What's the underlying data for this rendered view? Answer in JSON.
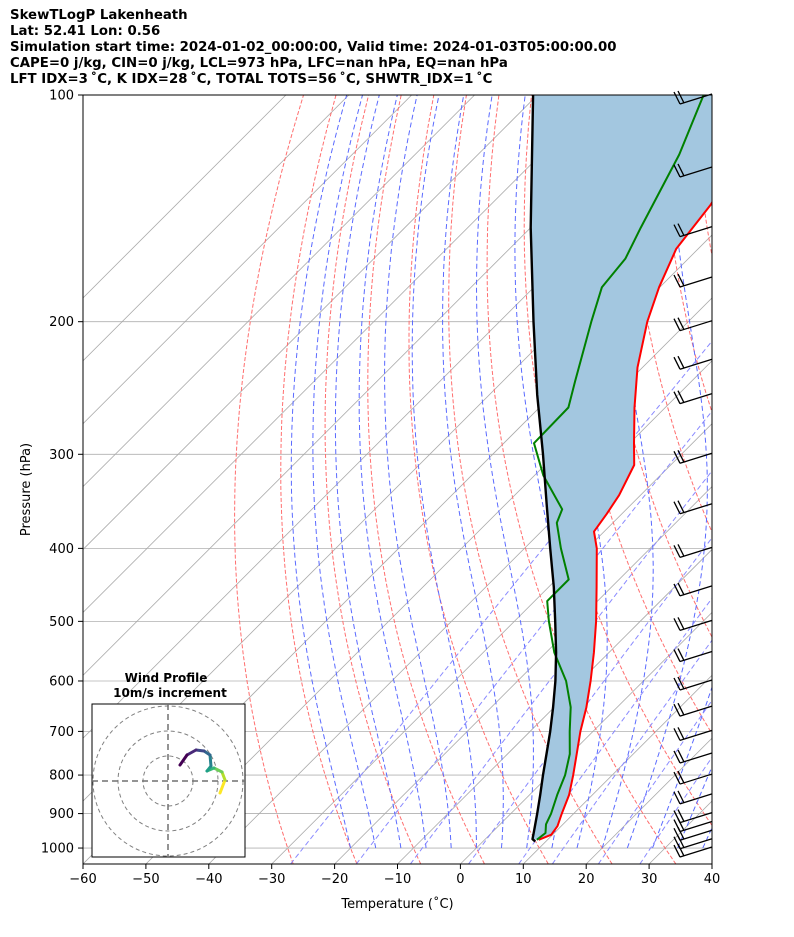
{
  "header": {
    "title": "SkewTLogP Lakenheath",
    "location": "Lat: 52.41   Lon: 0.56",
    "times": "Simulation start time: 2024-01-02_00:00:00, Valid time: 2024-01-03T05:00:00.00",
    "params": "CAPE=0 j/kg, CIN=0 j/kg, LCL=973 hPa, LFC=nan hPa, EQ=nan hPa",
    "indices": "LFT IDX=3 ˚C, K IDX=28 ˚C, TOTAL TOTS=56 ˚C, SHWTR_IDX=1 ˚C"
  },
  "colors": {
    "temperature": "#ff0000",
    "dewpoint": "#008000",
    "parcel": "#000000",
    "cape_fill": "#a3c7e0",
    "dry_adiabat": "#ff6f6f",
    "moist_adiabat": "#5a6aff",
    "mixing_ratio": "#8a8aff",
    "isotherm": "#aaaaaa"
  },
  "chart_data": {
    "type": "skewt",
    "title": "SkewTLogP Lakenheath",
    "xlabel": "Temperature (˚C)",
    "ylabel": "Pressure (hPa)",
    "xlim": [
      -60,
      40
    ],
    "ylim": [
      1050,
      100
    ],
    "y_scale": "log",
    "x_ticks": [
      -60,
      -50,
      -40,
      -30,
      -20,
      -10,
      0,
      10,
      20,
      30,
      40
    ],
    "x_tick_labels": [
      "−60",
      "−50",
      "−40",
      "−30",
      "−20",
      "−10",
      "0",
      "10",
      "20",
      "30",
      "40"
    ],
    "y_ticks": [
      1000,
      900,
      800,
      700,
      600,
      500,
      400,
      300,
      200,
      100
    ],
    "y_tick_labels": [
      "1000",
      "900",
      "800",
      "700",
      "600",
      "500",
      "400",
      "300",
      "200",
      "100"
    ],
    "grid": true,
    "temperature": [
      {
        "p": 975,
        "t": 8.6
      },
      {
        "p": 960,
        "t": 9.8
      },
      {
        "p": 935,
        "t": 9.4
      },
      {
        "p": 900,
        "t": 8.1
      },
      {
        "p": 850,
        "t": 6.3
      },
      {
        "p": 800,
        "t": 3.8
      },
      {
        "p": 750,
        "t": 1.0
      },
      {
        "p": 700,
        "t": -2.0
      },
      {
        "p": 650,
        "t": -4.9
      },
      {
        "p": 600,
        "t": -8.4
      },
      {
        "p": 550,
        "t": -12.4
      },
      {
        "p": 500,
        "t": -17.0
      },
      {
        "p": 450,
        "t": -22.4
      },
      {
        "p": 400,
        "t": -28.5
      },
      {
        "p": 380,
        "t": -31.6
      },
      {
        "p": 360,
        "t": -32.4
      },
      {
        "p": 340,
        "t": -33.4
      },
      {
        "p": 310,
        "t": -35.8
      },
      {
        "p": 290,
        "t": -39.3
      },
      {
        "p": 260,
        "t": -44.9
      },
      {
        "p": 230,
        "t": -50.8
      },
      {
        "p": 200,
        "t": -56.5
      },
      {
        "p": 180,
        "t": -60.1
      },
      {
        "p": 160,
        "t": -63.5
      },
      {
        "p": 140,
        "t": -65.0
      },
      {
        "p": 130,
        "t": -66.5
      },
      {
        "p": 118,
        "t": -70.7
      },
      {
        "p": 105,
        "t": -73.5
      },
      {
        "p": 100,
        "t": -75.0
      }
    ],
    "dewpoint": [
      {
        "p": 975,
        "t": 8.3
      },
      {
        "p": 955,
        "t": 8.6
      },
      {
        "p": 930,
        "t": 7.3
      },
      {
        "p": 900,
        "t": 6.4
      },
      {
        "p": 850,
        "t": 4.4
      },
      {
        "p": 800,
        "t": 2.5
      },
      {
        "p": 750,
        "t": -0.1
      },
      {
        "p": 700,
        "t": -3.7
      },
      {
        "p": 650,
        "t": -7.4
      },
      {
        "p": 600,
        "t": -12.3
      },
      {
        "p": 550,
        "t": -18.7
      },
      {
        "p": 500,
        "t": -24.5
      },
      {
        "p": 470,
        "t": -28.0
      },
      {
        "p": 440,
        "t": -28.0
      },
      {
        "p": 400,
        "t": -34.2
      },
      {
        "p": 370,
        "t": -38.9
      },
      {
        "p": 355,
        "t": -40.2
      },
      {
        "p": 320,
        "t": -48.6
      },
      {
        "p": 290,
        "t": -55.2
      },
      {
        "p": 260,
        "t": -55.4
      },
      {
        "p": 240,
        "t": -58.5
      },
      {
        "p": 200,
        "t": -65.4
      },
      {
        "p": 180,
        "t": -69.2
      },
      {
        "p": 165,
        "t": -70.0
      },
      {
        "p": 150,
        "t": -72.5
      },
      {
        "p": 120,
        "t": -78.0
      },
      {
        "p": 100,
        "t": -83.6
      }
    ],
    "parcel": [
      {
        "p": 980,
        "t": 8.3
      },
      {
        "p": 973,
        "t": 7.5
      },
      {
        "p": 950,
        "t": 6.5
      },
      {
        "p": 900,
        "t": 4.2
      },
      {
        "p": 850,
        "t": 1.7
      },
      {
        "p": 800,
        "t": -1.0
      },
      {
        "p": 750,
        "t": -3.8
      },
      {
        "p": 700,
        "t": -6.8
      },
      {
        "p": 650,
        "t": -10.2
      },
      {
        "p": 600,
        "t": -14.0
      },
      {
        "p": 550,
        "t": -18.4
      },
      {
        "p": 500,
        "t": -23.5
      },
      {
        "p": 450,
        "t": -29.2
      },
      {
        "p": 400,
        "t": -35.9
      },
      {
        "p": 350,
        "t": -43.4
      },
      {
        "p": 300,
        "t": -52.0
      },
      {
        "p": 250,
        "t": -62.4
      },
      {
        "p": 200,
        "t": -74.6
      },
      {
        "p": 150,
        "t": -90.0
      },
      {
        "p": 100,
        "t": -110.7
      }
    ],
    "wind_barbs_p": [
      1000,
      975,
      950,
      925,
      900,
      850,
      800,
      750,
      700,
      650,
      600,
      550,
      500,
      450,
      400,
      350,
      300,
      250,
      225,
      200,
      175,
      150,
      125,
      100
    ],
    "inset": {
      "title": "Wind Profile",
      "subtitle": "10m/s increment",
      "rings_ms": [
        10,
        20,
        30
      ]
    }
  }
}
